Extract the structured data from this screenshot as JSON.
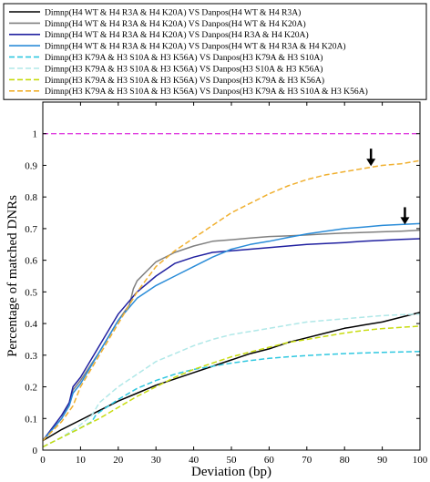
{
  "chart_data": {
    "type": "line",
    "xlabel": "Deviation (bp)",
    "ylabel": "Percentage of matched DNRs",
    "xlim": [
      0,
      100
    ],
    "ylim": [
      0,
      1.1
    ],
    "xticks": [
      "0",
      "10",
      "20",
      "30",
      "40",
      "50",
      "60",
      "70",
      "80",
      "90",
      "100"
    ],
    "yticks": [
      "0",
      "0.1",
      "0.2",
      "0.3",
      "0.4",
      "0.5",
      "0.6",
      "0.7",
      "0.8",
      "0.9",
      "1"
    ],
    "legend_position": "top",
    "reference_line": {
      "y": 1.0,
      "color": "#e040e0",
      "style": "dashed"
    },
    "annotations": [
      {
        "type": "arrow",
        "x": 87,
        "y": 0.895
      },
      {
        "type": "arrow",
        "x": 96,
        "y": 0.71
      }
    ],
    "series": [
      {
        "name": "Dimnp(H4 WT & H4 R3A & H4 K20A) VS Danpos(H4 WT & H4 R3A)",
        "color": "#000000",
        "style": "solid",
        "x": [
          0,
          5,
          10,
          15,
          20,
          25,
          30,
          35,
          40,
          45,
          50,
          55,
          60,
          65,
          70,
          75,
          80,
          85,
          90,
          95,
          100
        ],
        "y": [
          0.03,
          0.065,
          0.095,
          0.125,
          0.155,
          0.18,
          0.205,
          0.225,
          0.245,
          0.265,
          0.285,
          0.305,
          0.32,
          0.34,
          0.355,
          0.37,
          0.385,
          0.395,
          0.405,
          0.42,
          0.435
        ]
      },
      {
        "name": "Dimnp(H4 WT & H4 R3A & H4 K20A) VS Danpos(H4 WT & H4 K20A)",
        "color": "#808080",
        "style": "solid",
        "x": [
          0,
          5,
          7,
          8,
          10,
          15,
          20,
          23,
          24,
          25,
          30,
          35,
          40,
          45,
          50,
          55,
          60,
          65,
          70,
          75,
          80,
          85,
          90,
          95,
          100
        ],
        "y": [
          0.03,
          0.1,
          0.15,
          0.19,
          0.22,
          0.31,
          0.41,
          0.46,
          0.51,
          0.535,
          0.595,
          0.625,
          0.645,
          0.66,
          0.665,
          0.67,
          0.675,
          0.677,
          0.68,
          0.683,
          0.686,
          0.688,
          0.69,
          0.692,
          0.695
        ]
      },
      {
        "name": "Dimnp(H4 WT & H4 R3A & H4 K20A) VS Danpos(H4 R3A & H4 K20A)",
        "color": "#2020a0",
        "style": "solid",
        "x": [
          0,
          5,
          7,
          8,
          10,
          15,
          20,
          25,
          30,
          35,
          40,
          45,
          50,
          55,
          60,
          65,
          70,
          75,
          80,
          85,
          90,
          95,
          100
        ],
        "y": [
          0.03,
          0.11,
          0.15,
          0.2,
          0.23,
          0.33,
          0.43,
          0.5,
          0.55,
          0.59,
          0.61,
          0.625,
          0.63,
          0.635,
          0.64,
          0.645,
          0.65,
          0.653,
          0.656,
          0.66,
          0.663,
          0.666,
          0.668
        ]
      },
      {
        "name": "Dimnp(H4 WT & H4 R3A & H4 K20A) VS Danpos(H4 WT & H4 R3A & H4 K20A)",
        "color": "#2a8cd8",
        "style": "solid",
        "x": [
          0,
          5,
          7,
          8,
          10,
          15,
          20,
          25,
          30,
          35,
          40,
          45,
          50,
          55,
          60,
          65,
          70,
          75,
          80,
          85,
          90,
          95,
          100
        ],
        "y": [
          0.03,
          0.1,
          0.14,
          0.18,
          0.21,
          0.31,
          0.41,
          0.48,
          0.52,
          0.55,
          0.58,
          0.61,
          0.635,
          0.65,
          0.66,
          0.672,
          0.683,
          0.692,
          0.7,
          0.705,
          0.71,
          0.713,
          0.716
        ]
      },
      {
        "name": "Dimnp(H3 K79A & H3 S10A & H3 K56A) VS Danpos(H3 K79A & H3 S10A)",
        "color": "#30c8e0",
        "style": "dashed",
        "x": [
          0,
          5,
          10,
          13,
          14,
          15,
          20,
          25,
          30,
          35,
          40,
          45,
          50,
          55,
          60,
          65,
          70,
          75,
          80,
          85,
          90,
          95,
          100
        ],
        "y": [
          0.01,
          0.04,
          0.07,
          0.09,
          0.11,
          0.12,
          0.16,
          0.195,
          0.22,
          0.24,
          0.255,
          0.265,
          0.275,
          0.283,
          0.29,
          0.295,
          0.299,
          0.302,
          0.305,
          0.307,
          0.309,
          0.31,
          0.312
        ]
      },
      {
        "name": "Dimnp(H3 K79A & H3 S10A & H3 K56A) VS Danpos(H3 S10A & H3 K56A)",
        "color": "#b0e8e8",
        "style": "dashed",
        "x": [
          0,
          5,
          10,
          13,
          14,
          15,
          20,
          25,
          30,
          35,
          40,
          45,
          50,
          55,
          60,
          65,
          70,
          75,
          80,
          85,
          90,
          95,
          100
        ],
        "y": [
          0.01,
          0.04,
          0.08,
          0.11,
          0.13,
          0.15,
          0.2,
          0.24,
          0.28,
          0.305,
          0.33,
          0.35,
          0.365,
          0.375,
          0.385,
          0.395,
          0.405,
          0.41,
          0.415,
          0.42,
          0.425,
          0.428,
          0.43
        ]
      },
      {
        "name": "Dimnp(H3 K79A & H3 S10A & H3 K56A) VS Danpos(H3 K79A & H3 K56A)",
        "color": "#c8dc10",
        "style": "dashed",
        "x": [
          0,
          5,
          10,
          15,
          20,
          25,
          30,
          35,
          40,
          45,
          50,
          55,
          60,
          65,
          70,
          75,
          80,
          85,
          90,
          95,
          100
        ],
        "y": [
          0.01,
          0.04,
          0.07,
          0.1,
          0.135,
          0.17,
          0.2,
          0.23,
          0.255,
          0.275,
          0.295,
          0.31,
          0.325,
          0.34,
          0.35,
          0.36,
          0.37,
          0.378,
          0.384,
          0.388,
          0.392
        ]
      },
      {
        "name": "Dimnp(H3 K79A & H3 S10A & H3 K56A) VS Danpos(H3 K79A & H3 S10A & H3 K56A)",
        "color": "#f0b030",
        "style": "dashed",
        "x": [
          0,
          5,
          8,
          10,
          15,
          20,
          25,
          30,
          35,
          40,
          45,
          50,
          55,
          60,
          65,
          70,
          75,
          80,
          85,
          90,
          95,
          100
        ],
        "y": [
          0.03,
          0.09,
          0.14,
          0.2,
          0.3,
          0.4,
          0.5,
          0.58,
          0.63,
          0.67,
          0.71,
          0.75,
          0.78,
          0.81,
          0.835,
          0.855,
          0.87,
          0.88,
          0.89,
          0.9,
          0.905,
          0.915
        ]
      }
    ]
  }
}
